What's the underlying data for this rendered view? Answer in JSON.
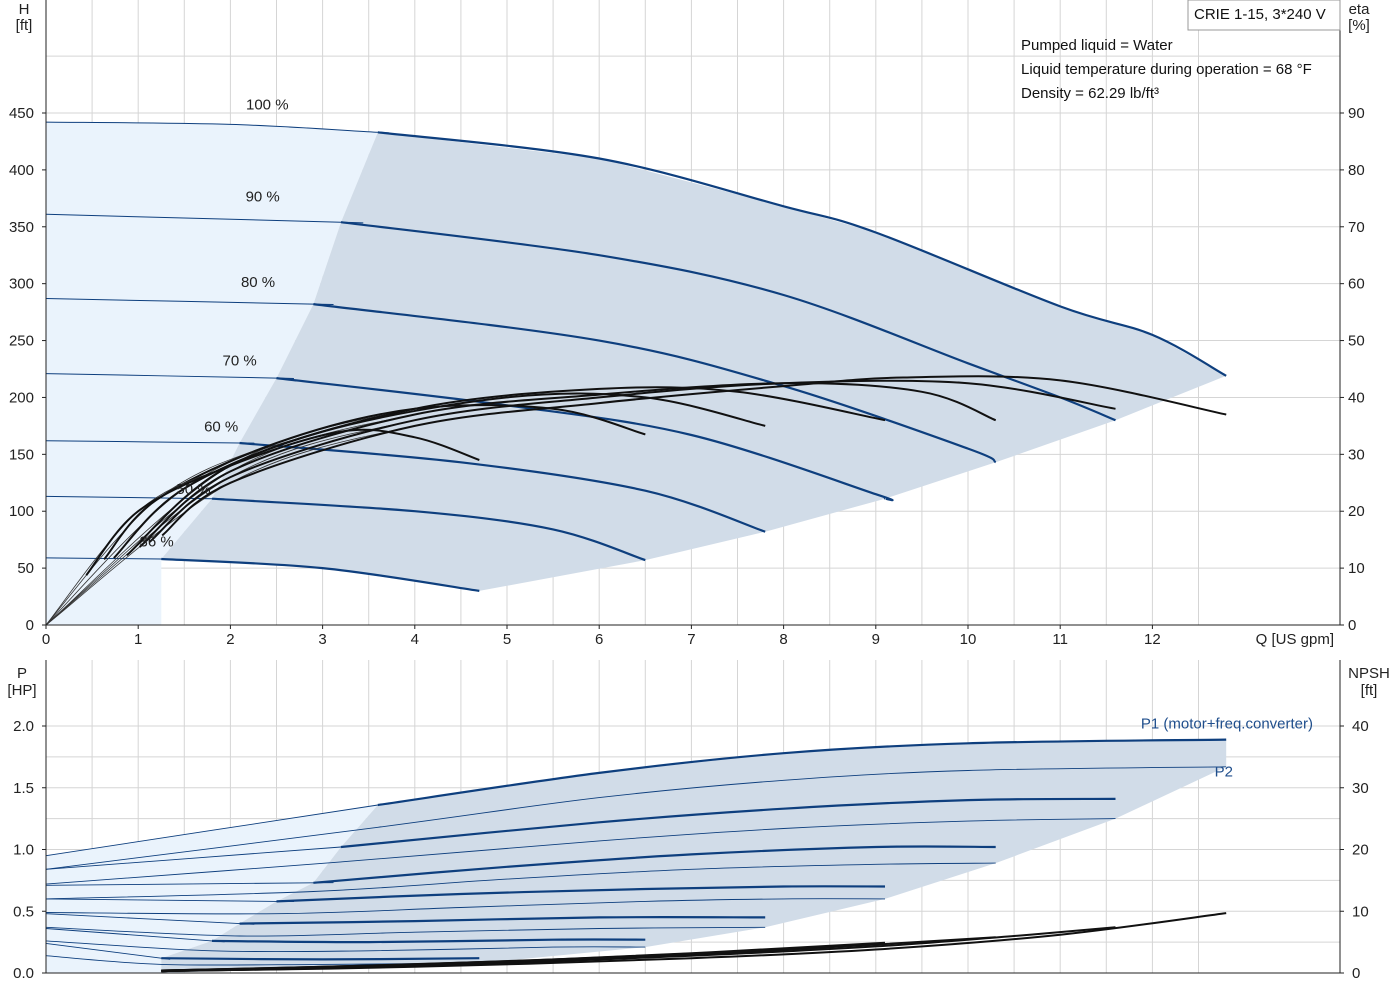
{
  "product_label": "CRIE 1-15, 3*240 V",
  "notes": [
    "Pumped liquid = Water",
    "Liquid temperature during operation = 68 °F",
    "Density = 62.29 lb/ft³"
  ],
  "colors": {
    "curve": "#0e3f7e",
    "light_area": "#eaf3fc",
    "dark_area": "#d1dce8",
    "grid": "#d5d5d5",
    "black": "#111111"
  },
  "chart_data": [
    {
      "type": "line",
      "x": {
        "label": "Q [US gpm]",
        "range": [
          0,
          14
        ],
        "ticks": [
          0,
          1,
          2,
          3,
          4,
          5,
          6,
          7,
          8,
          9,
          10,
          11,
          12
        ]
      },
      "y_left": {
        "label": [
          "H",
          "[ft]"
        ],
        "range": [
          0,
          550
        ],
        "ticks": [
          0,
          50,
          100,
          150,
          200,
          250,
          300,
          350,
          400,
          450
        ]
      },
      "y_right": {
        "label": [
          "eta",
          "[%]"
        ],
        "range": [
          0,
          110
        ],
        "ticks": [
          0,
          10,
          20,
          30,
          40,
          50,
          60,
          70,
          80,
          90
        ]
      },
      "speed_labels": [
        {
          "text": "100 %",
          "q": 2.4,
          "h": 453
        },
        {
          "text": "90 %",
          "q": 2.35,
          "h": 372
        },
        {
          "text": "80 %",
          "q": 2.3,
          "h": 297
        },
        {
          "text": "70 %",
          "q": 2.1,
          "h": 228
        },
        {
          "text": "60 %",
          "q": 1.9,
          "h": 170
        },
        {
          "text": "50 %",
          "q": 1.6,
          "h": 115
        },
        {
          "text": "36 %",
          "q": 1.2,
          "h": 69
        }
      ],
      "head_curves": [
        {
          "name": "100 %",
          "h0": 442,
          "q_start": 3.6,
          "q_end": 12.8,
          "points": [
            [
              0,
              442
            ],
            [
              2,
              440
            ],
            [
              3.6,
              433
            ],
            [
              6,
              410
            ],
            [
              8,
              368
            ],
            [
              9,
              345
            ],
            [
              11,
              280
            ],
            [
              12,
              255
            ],
            [
              12.8,
              219
            ]
          ]
        },
        {
          "name": "90 %",
          "h0": 361,
          "q_start": 3.2,
          "q_end": 11.6,
          "points": [
            [
              0,
              361
            ],
            [
              3.2,
              354
            ],
            [
              6,
              325
            ],
            [
              8,
              290
            ],
            [
              10,
              230
            ],
            [
              11,
              200
            ],
            [
              11.6,
              180
            ]
          ]
        },
        {
          "name": "80 %",
          "h0": 287,
          "q_start": 2.9,
          "q_end": 10.3,
          "points": [
            [
              0,
              287
            ],
            [
              2.9,
              282
            ],
            [
              6,
              250
            ],
            [
              8,
              210
            ],
            [
              10,
              155
            ],
            [
              10.3,
              143
            ]
          ]
        },
        {
          "name": "70 %",
          "h0": 221,
          "q_start": 2.5,
          "q_end": 9.1,
          "points": [
            [
              0,
              221
            ],
            [
              2.5,
              217
            ],
            [
              5,
              193
            ],
            [
              7,
              167
            ],
            [
              9,
              115
            ],
            [
              9.1,
              111
            ]
          ]
        },
        {
          "name": "60 %",
          "h0": 162,
          "q_start": 2.1,
          "q_end": 7.8,
          "points": [
            [
              0,
              162
            ],
            [
              2.1,
              160
            ],
            [
              4.5,
              143
            ],
            [
              6.5,
              118
            ],
            [
              7.8,
              82
            ]
          ]
        },
        {
          "name": "50 %",
          "h0": 113,
          "q_start": 1.8,
          "q_end": 6.5,
          "points": [
            [
              0,
              113
            ],
            [
              1.8,
              111
            ],
            [
              4,
              100
            ],
            [
              5.5,
              84
            ],
            [
              6.5,
              57
            ]
          ]
        },
        {
          "name": "36 %",
          "h0": 59,
          "q_start": 1.25,
          "q_end": 4.7,
          "points": [
            [
              0,
              59
            ],
            [
              1.25,
              58
            ],
            [
              3,
              50
            ],
            [
              4.7,
              30
            ]
          ]
        }
      ],
      "eta_curves": [
        {
          "name": "100 %",
          "points": [
            [
              0,
              0
            ],
            [
              2,
              25
            ],
            [
              4,
              35
            ],
            [
              6,
              39
            ],
            [
              8,
              42
            ],
            [
              9.3,
              43.5
            ],
            [
              11,
              43
            ],
            [
              12.8,
              37
            ]
          ]
        },
        {
          "name": "90 %",
          "points": [
            [
              0,
              0
            ],
            [
              2,
              26
            ],
            [
              4,
              36
            ],
            [
              6,
              40
            ],
            [
              8,
              42.5
            ],
            [
              10,
              42.5
            ],
            [
              11.6,
              38
            ]
          ]
        },
        {
          "name": "80 %",
          "points": [
            [
              0,
              0
            ],
            [
              2,
              27
            ],
            [
              4,
              37
            ],
            [
              6,
              40.5
            ],
            [
              8,
              42.5
            ],
            [
              9.5,
              41
            ],
            [
              10.3,
              36
            ]
          ]
        },
        {
          "name": "70 %",
          "points": [
            [
              0,
              0
            ],
            [
              2,
              28
            ],
            [
              4,
              38
            ],
            [
              6,
              41.5
            ],
            [
              7.5,
              41
            ],
            [
              9.1,
              36
            ]
          ]
        },
        {
          "name": "60 %",
          "points": [
            [
              0,
              0
            ],
            [
              1.5,
              24
            ],
            [
              3,
              34
            ],
            [
              5,
              40
            ],
            [
              6.5,
              40
            ],
            [
              7.8,
              35
            ]
          ]
        },
        {
          "name": "50 %",
          "points": [
            [
              0,
              0
            ],
            [
              1.2,
              22
            ],
            [
              2.5,
              32
            ],
            [
              4,
              38
            ],
            [
              5.5,
              38
            ],
            [
              6.5,
              33.5
            ]
          ]
        },
        {
          "name": "36 %",
          "points": [
            [
              0,
              0
            ],
            [
              1,
              20
            ],
            [
              2,
              28
            ],
            [
              3.2,
              34
            ],
            [
              4,
              33
            ],
            [
              4.7,
              29
            ]
          ]
        }
      ]
    },
    {
      "type": "line",
      "x": {
        "label": "Q [US gpm]",
        "range": [
          0,
          14
        ],
        "ticks": [
          0,
          1,
          2,
          3,
          4,
          5,
          6,
          7,
          8,
          9,
          10,
          11,
          12
        ]
      },
      "y_left": {
        "label": [
          "P",
          "[HP]"
        ],
        "range": [
          0,
          2.0
        ],
        "ticks": [
          "0.0",
          "0.5",
          "1.0",
          "1.5",
          "2.0"
        ]
      },
      "y_right": {
        "label": [
          "NPSH",
          "[ft]"
        ],
        "range": [
          0,
          40
        ],
        "ticks": [
          0,
          10,
          20,
          30,
          40
        ]
      },
      "series_labels": [
        {
          "text": "P1 (motor+freq.converter)",
          "q": 12.6,
          "p": 1.98
        },
        {
          "text": "P2",
          "q": 12.6,
          "p": 1.59
        }
      ],
      "p1_curves": [
        {
          "name": "100 %",
          "points": [
            [
              0,
              0.95
            ],
            [
              3.6,
              1.36
            ],
            [
              6,
              1.62
            ],
            [
              8,
              1.78
            ],
            [
              10,
              1.86
            ],
            [
              12.8,
              1.89
            ]
          ]
        },
        {
          "name": "90 %",
          "points": [
            [
              0,
              0.84
            ],
            [
              3.2,
              1.02
            ],
            [
              6,
              1.22
            ],
            [
              8,
              1.33
            ],
            [
              10,
              1.4
            ],
            [
              11.6,
              1.41
            ]
          ]
        },
        {
          "name": "80 %",
          "points": [
            [
              0,
              0.71
            ],
            [
              2.9,
              0.73
            ],
            [
              5,
              0.86
            ],
            [
              7,
              0.96
            ],
            [
              9,
              1.02
            ],
            [
              10.3,
              1.02
            ]
          ]
        },
        {
          "name": "70 %",
          "points": [
            [
              0,
              0.6
            ],
            [
              2.5,
              0.58
            ],
            [
              4.5,
              0.64
            ],
            [
              6.5,
              0.68
            ],
            [
              8,
              0.7
            ],
            [
              9.1,
              0.7
            ]
          ]
        },
        {
          "name": "60 %",
          "points": [
            [
              0,
              0.48
            ],
            [
              2.1,
              0.4
            ],
            [
              4,
              0.42
            ],
            [
              6,
              0.45
            ],
            [
              7.8,
              0.45
            ]
          ]
        },
        {
          "name": "50 %",
          "points": [
            [
              0,
              0.36
            ],
            [
              1.8,
              0.26
            ],
            [
              3.5,
              0.25
            ],
            [
              5.5,
              0.27
            ],
            [
              6.5,
              0.27
            ]
          ]
        },
        {
          "name": "36 %",
          "points": [
            [
              0,
              0.24
            ],
            [
              1.25,
              0.12
            ],
            [
              3,
              0.11
            ],
            [
              4.7,
              0.12
            ]
          ]
        }
      ],
      "p2_curves": [
        {
          "name": "100 %",
          "points": [
            [
              0,
              0.84
            ],
            [
              3.6,
              1.18
            ],
            [
              6,
              1.42
            ],
            [
              8,
              1.56
            ],
            [
              10,
              1.64
            ],
            [
              12.8,
              1.67
            ]
          ]
        },
        {
          "name": "90 %",
          "points": [
            [
              0,
              0.72
            ],
            [
              3.2,
              0.9
            ],
            [
              6,
              1.07
            ],
            [
              8,
              1.17
            ],
            [
              10,
              1.23
            ],
            [
              11.6,
              1.25
            ]
          ]
        },
        {
          "name": "80 %",
          "points": [
            [
              0,
              0.6
            ],
            [
              2.9,
              0.66
            ],
            [
              5,
              0.76
            ],
            [
              7,
              0.84
            ],
            [
              9,
              0.88
            ],
            [
              10.3,
              0.89
            ]
          ]
        },
        {
          "name": "70 %",
          "points": [
            [
              0,
              0.49
            ],
            [
              2.5,
              0.48
            ],
            [
              4.5,
              0.53
            ],
            [
              6.5,
              0.58
            ],
            [
              8,
              0.6
            ],
            [
              9.1,
              0.6
            ]
          ]
        },
        {
          "name": "60 %",
          "points": [
            [
              0,
              0.37
            ],
            [
              2.1,
              0.3
            ],
            [
              4,
              0.33
            ],
            [
              6,
              0.36
            ],
            [
              7.8,
              0.37
            ]
          ]
        },
        {
          "name": "50 %",
          "points": [
            [
              0,
              0.26
            ],
            [
              1.8,
              0.18
            ],
            [
              3.5,
              0.18
            ],
            [
              5.5,
              0.21
            ],
            [
              6.5,
              0.21
            ]
          ]
        },
        {
          "name": "36 %",
          "points": [
            [
              0,
              0.14
            ],
            [
              1.25,
              0.07
            ],
            [
              3,
              0.07
            ],
            [
              4.7,
              0.08
            ]
          ]
        }
      ],
      "npsh_curves": [
        {
          "name": "100 %",
          "points": [
            [
              1.25,
              0.3
            ],
            [
              4,
              1.0
            ],
            [
              7,
              2.4
            ],
            [
              9,
              3.8
            ],
            [
              11,
              6.2
            ],
            [
              12.8,
              9.7
            ]
          ]
        },
        {
          "name": "90 %",
          "points": [
            [
              1.25,
              0.3
            ],
            [
              4,
              1.1
            ],
            [
              7,
              2.8
            ],
            [
              9,
              4.3
            ],
            [
              10.5,
              6
            ],
            [
              11.6,
              7.4
            ]
          ]
        },
        {
          "name": "80 %",
          "points": [
            [
              1.25,
              0.3
            ],
            [
              4,
              1.2
            ],
            [
              7,
              3.0
            ],
            [
              9,
              4.6
            ],
            [
              10.3,
              5.8
            ]
          ]
        },
        {
          "name": "70 %",
          "points": [
            [
              1.25,
              0.3
            ],
            [
              4,
              1.3
            ],
            [
              7,
              3.2
            ],
            [
              9.1,
              4.9
            ]
          ]
        },
        {
          "name": "60 %",
          "points": [
            [
              1.25,
              0.4
            ],
            [
              4,
              1.4
            ],
            [
              6,
              2.5
            ],
            [
              7.8,
              3.7
            ]
          ]
        },
        {
          "name": "50 %",
          "points": [
            [
              1.25,
              0.4
            ],
            [
              3,
              1.0
            ],
            [
              5,
              1.9
            ],
            [
              6.5,
              2.6
            ]
          ]
        },
        {
          "name": "36 %",
          "points": [
            [
              1.25,
              0.4
            ],
            [
              3,
              0.9
            ],
            [
              4.7,
              1.5
            ]
          ]
        }
      ]
    }
  ]
}
